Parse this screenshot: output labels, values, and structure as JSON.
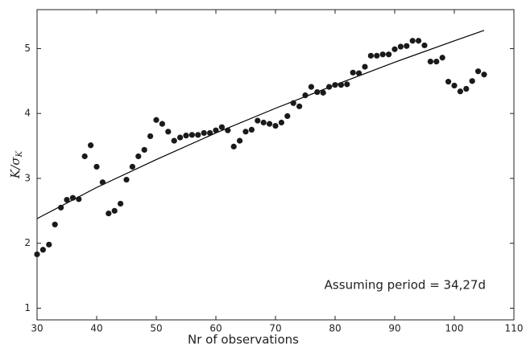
{
  "chart_data": {
    "type": "scatter",
    "x_label": "Nr of observations",
    "y_label": {
      "main": "K/σ",
      "sub": "K"
    },
    "annotation": "Assuming period = 34,27d",
    "xlim": [
      30,
      110
    ],
    "ylim": [
      0.82,
      5.6
    ],
    "xticks": [
      30,
      40,
      50,
      60,
      70,
      80,
      90,
      100,
      110
    ],
    "yticks": [
      1,
      2,
      3,
      4,
      5
    ],
    "points": {
      "color": "#1a1a1a",
      "x": [
        30,
        31,
        32,
        33,
        34,
        35,
        36,
        37,
        38,
        39,
        40,
        41,
        42,
        43,
        44,
        45,
        46,
        47,
        48,
        49,
        50,
        51,
        52,
        53,
        54,
        55,
        56,
        57,
        58,
        59,
        60,
        61,
        62,
        63,
        64,
        65,
        66,
        67,
        68,
        69,
        70,
        71,
        72,
        73,
        74,
        75,
        76,
        77,
        78,
        79,
        80,
        81,
        82,
        83,
        84,
        85,
        86,
        87,
        88,
        89,
        90,
        91,
        92,
        93,
        94,
        95,
        96,
        97,
        98,
        99,
        100,
        101,
        102,
        103,
        104,
        105
      ],
      "values": [
        1.83,
        1.9,
        1.98,
        2.29,
        2.55,
        2.67,
        2.7,
        2.68,
        3.34,
        3.51,
        3.18,
        2.94,
        2.46,
        2.5,
        2.61,
        2.98,
        3.18,
        3.34,
        3.44,
        3.65,
        3.9,
        3.84,
        3.72,
        3.58,
        3.63,
        3.66,
        3.67,
        3.67,
        3.7,
        3.7,
        3.74,
        3.79,
        3.74,
        3.49,
        3.58,
        3.72,
        3.75,
        3.89,
        3.86,
        3.84,
        3.81,
        3.86,
        3.96,
        4.16,
        4.11,
        4.28,
        4.41,
        4.33,
        4.32,
        4.41,
        4.44,
        4.44,
        4.45,
        4.63,
        4.62,
        4.72,
        4.89,
        4.89,
        4.91,
        4.91,
        4.99,
        5.03,
        5.04,
        5.12,
        5.12,
        5.05,
        4.8,
        4.8,
        4.86,
        4.49,
        4.43,
        4.34,
        4.38,
        4.5,
        4.65,
        4.6
      ]
    },
    "fit": {
      "color": "#000000",
      "x": [
        30,
        40,
        50,
        60,
        70,
        80,
        90,
        100,
        105
      ],
      "values": [
        2.38,
        2.86,
        3.29,
        3.7,
        4.08,
        4.44,
        4.79,
        5.12,
        5.28
      ]
    }
  }
}
